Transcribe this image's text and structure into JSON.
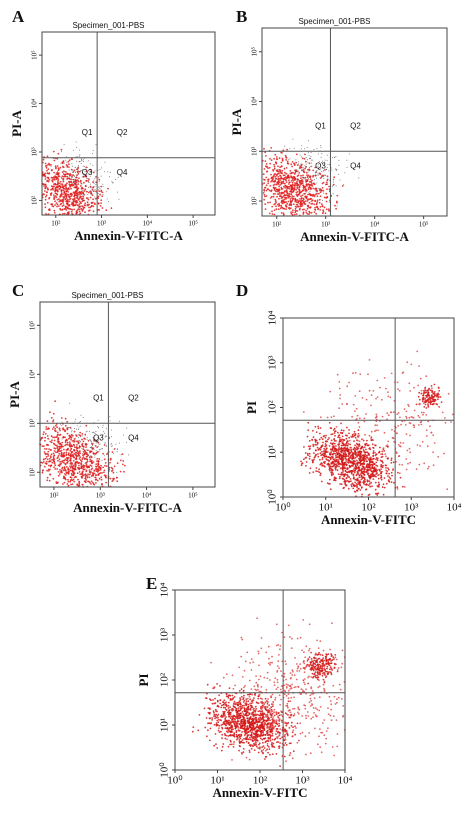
{
  "panels": [
    {
      "label": "A",
      "title": "Specimen_001-PBS",
      "xlabel": "Annexin-V-FITC-A",
      "ylabel": "PI-A",
      "quadrants": [
        "Q1",
        "Q2",
        "Q3",
        "Q4"
      ],
      "log": true,
      "xlim": [
        50,
        300000
      ],
      "ylim": [
        50,
        300000
      ],
      "xticks": [
        {
          "value": 100,
          "label": "10²"
        },
        {
          "value": 1000,
          "label": "10³"
        },
        {
          "value": 10000,
          "label": "10⁴"
        },
        {
          "value": 100000,
          "label": "10⁵"
        }
      ],
      "yticks": [
        {
          "value": 100,
          "label": "10²"
        },
        {
          "value": 1000,
          "label": "10³"
        },
        {
          "value": 10000,
          "label": "10⁴"
        },
        {
          "value": 100000,
          "label": "10⁵"
        }
      ],
      "gate": {
        "x": 800,
        "y": 760
      }
    },
    {
      "label": "B",
      "title": "Specimen_001-PBS",
      "xlabel": "Annexin-V-FITC-A",
      "ylabel": "PI-A",
      "quadrants": [
        "Q1",
        "Q2",
        "Q3",
        "Q4"
      ],
      "log": true,
      "xlim": [
        50,
        300000
      ],
      "ylim": [
        50,
        300000
      ],
      "xticks": [
        {
          "value": 100,
          "label": "10²"
        },
        {
          "value": 1000,
          "label": "10³"
        },
        {
          "value": 10000,
          "label": "10⁴"
        },
        {
          "value": 100000,
          "label": "10⁵"
        }
      ],
      "yticks": [
        {
          "value": 100,
          "label": "10²"
        },
        {
          "value": 1000,
          "label": "10³"
        },
        {
          "value": 10000,
          "label": "10⁴"
        },
        {
          "value": 100000,
          "label": "10⁵"
        }
      ],
      "gate": {
        "x": 1250,
        "y": 1000
      }
    },
    {
      "label": "C",
      "title": "Specimen_001-PBS",
      "xlabel": "Annexin-V-FITC-A",
      "ylabel": "PI-A",
      "quadrants": [
        "Q1",
        "Q2",
        "Q3",
        "Q4"
      ],
      "log": true,
      "xlim": [
        50,
        300000
      ],
      "ylim": [
        50,
        300000
      ],
      "xticks": [
        {
          "value": 100,
          "label": "10²"
        },
        {
          "value": 1000,
          "label": "10³"
        },
        {
          "value": 10000,
          "label": "10⁴"
        },
        {
          "value": 100000,
          "label": "10⁵"
        }
      ],
      "yticks": [
        {
          "value": 100,
          "label": "10²"
        },
        {
          "value": 1000,
          "label": "10³"
        },
        {
          "value": 10000,
          "label": "10⁴"
        },
        {
          "value": 100000,
          "label": "10⁵"
        }
      ],
      "gate": {
        "x": 1500,
        "y": 1000
      }
    },
    {
      "label": "D",
      "xlabel": "Annexin-V-FITC",
      "ylabel": "PI",
      "log": true,
      "xlim": [
        1,
        10000
      ],
      "ylim": [
        1,
        10000
      ],
      "xticks": [
        {
          "value": 1,
          "label": "10⁰"
        },
        {
          "value": 10,
          "label": "10¹"
        },
        {
          "value": 100,
          "label": "10²"
        },
        {
          "value": 1000,
          "label": "10³"
        },
        {
          "value": 10000,
          "label": "10⁴"
        }
      ],
      "yticks": [
        {
          "value": 1,
          "label": "10⁰"
        },
        {
          "value": 10,
          "label": "10¹"
        },
        {
          "value": 100,
          "label": "10²"
        },
        {
          "value": 1000,
          "label": "10³"
        },
        {
          "value": 10000,
          "label": "10⁴"
        }
      ],
      "gate": {
        "x": 420,
        "y": 52
      }
    },
    {
      "label": "E",
      "xlabel": "Annexin-V-FITC",
      "ylabel": "PI",
      "log": true,
      "xlim": [
        1,
        10000
      ],
      "ylim": [
        1,
        10000
      ],
      "xticks": [
        {
          "value": 1,
          "label": "10⁰"
        },
        {
          "value": 10,
          "label": "10¹"
        },
        {
          "value": 100,
          "label": "10²"
        },
        {
          "value": 1000,
          "label": "10³"
        },
        {
          "value": 10000,
          "label": "10⁴"
        }
      ],
      "yticks": [
        {
          "value": 1,
          "label": "10⁰"
        },
        {
          "value": 10,
          "label": "10¹"
        },
        {
          "value": 100,
          "label": "10²"
        },
        {
          "value": 1000,
          "label": "10³"
        },
        {
          "value": 10000,
          "label": "10⁴"
        }
      ],
      "gate": {
        "x": 350,
        "y": 52
      }
    }
  ]
}
